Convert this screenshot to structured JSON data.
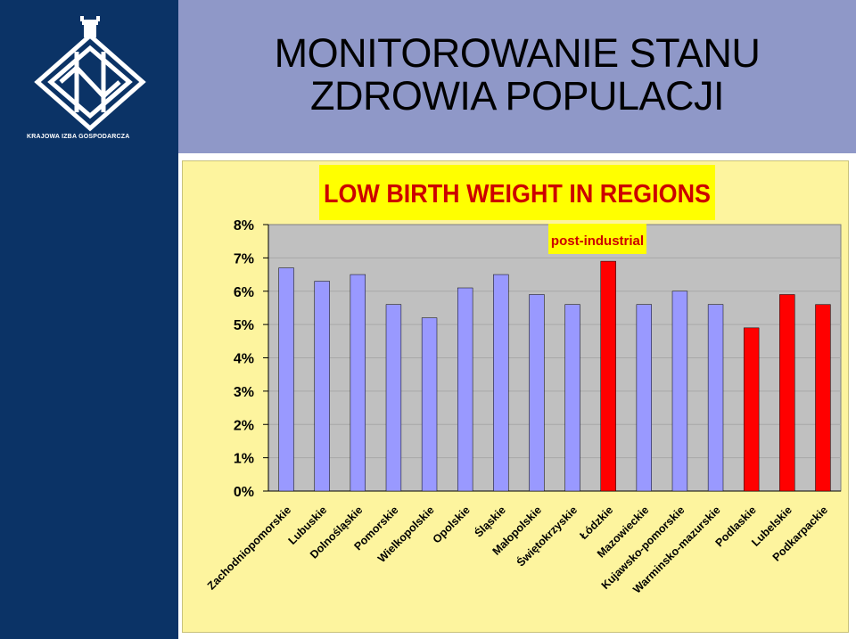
{
  "header": {
    "title_line1": "MONITOROWANIE STANU",
    "title_line2": "ZDROWIA POPULACJI"
  },
  "logo": {
    "icon": "krajowa-izba-gospodarcza-emblem",
    "caption": "KRAJOWA IZBA GOSPODARCZA"
  },
  "colors": {
    "sidebar": "#0b3366",
    "header": "#8f98c8",
    "chart_background": "#fdf49e",
    "plot_background": "#c0c0c0",
    "bar_blue": "#9999ff",
    "bar_red": "#ff0000",
    "title_box": "#ffff00",
    "title_text": "#cc0000"
  },
  "chart_data": {
    "type": "bar",
    "title": "LOW BIRTH WEIGHT IN REGIONS",
    "annotation": "post-industrial",
    "xlabel": "",
    "ylabel": "",
    "ylim": [
      0,
      8
    ],
    "yticks": [
      "0%",
      "1%",
      "2%",
      "3%",
      "4%",
      "5%",
      "6%",
      "7%",
      "8%"
    ],
    "grid": true,
    "categories": [
      "Zachodniopomorskie",
      "Lubuskie",
      "Dolnośląskie",
      "Pomorskie",
      "Wielkopolskie",
      "Opolskie",
      "Śląskie",
      "Małopolskie",
      "Świętokrzyskie",
      "Łódzkie",
      "Mazowieckie",
      "Kujawsko-pomorskie",
      "Warminsko-mazurskie",
      "Podlaskie",
      "Lubelskie",
      "Podkarpackie"
    ],
    "values": [
      6.7,
      6.3,
      6.5,
      5.6,
      5.2,
      6.1,
      6.5,
      5.9,
      5.6,
      6.9,
      5.6,
      6.0,
      5.6,
      4.9,
      5.9,
      5.6
    ],
    "highlight": [
      "blue",
      "blue",
      "blue",
      "blue",
      "blue",
      "blue",
      "blue",
      "blue",
      "blue",
      "red",
      "blue",
      "blue",
      "blue",
      "red",
      "red",
      "red"
    ]
  }
}
